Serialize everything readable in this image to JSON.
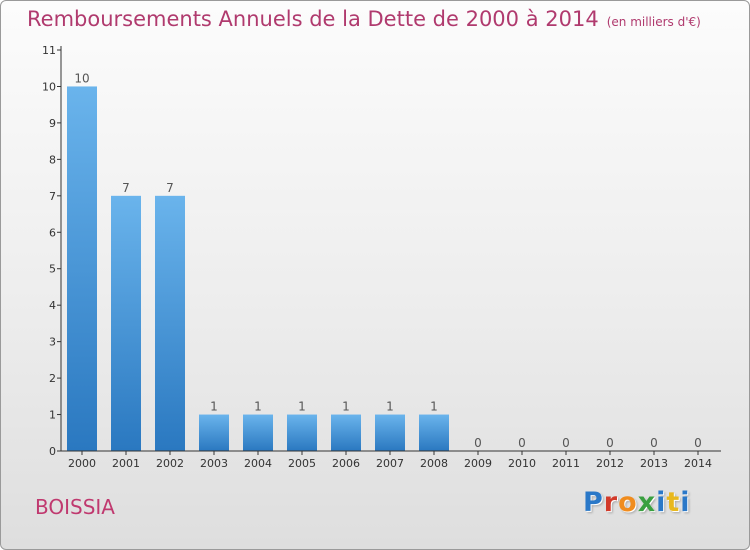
{
  "header": {
    "title": "Remboursements Annuels de la Dette de 2000 à 2014",
    "unit": "(en milliers d'€)"
  },
  "footer": {
    "commune": "BOISSIA",
    "logo_text": "Proxiti",
    "logo_colors": [
      "#2a78c8",
      "#d23a2a",
      "#f08c1e",
      "#3aa040",
      "#2a78c8",
      "#e8b81e",
      "#2a78c8"
    ]
  },
  "colors": {
    "bar_top": "#6ab4ec",
    "bar_bottom": "#2a78c0",
    "title": "#b03a6e",
    "axis": "#333333"
  },
  "chart_data": {
    "type": "bar",
    "title": "Remboursements Annuels de la Dette de 2000 à 2014",
    "xlabel": "",
    "ylabel": "",
    "categories": [
      "2000",
      "2001",
      "2002",
      "2003",
      "2004",
      "2005",
      "2006",
      "2007",
      "2008",
      "2009",
      "2010",
      "2011",
      "2012",
      "2013",
      "2014"
    ],
    "values": [
      10,
      7,
      7,
      1,
      1,
      1,
      1,
      1,
      1,
      0,
      0,
      0,
      0,
      0,
      0
    ],
    "data_labels": [
      "10",
      "7",
      "7",
      "1",
      "1",
      "1",
      "1",
      "1",
      "1",
      "0",
      "0",
      "0",
      "0",
      "0",
      "0"
    ],
    "yticks": [
      "0",
      "1",
      "2",
      "3",
      "4",
      "5",
      "6",
      "7",
      "8",
      "9",
      "10",
      "11"
    ],
    "ylim": [
      0,
      11
    ],
    "grid": false,
    "legend": "none"
  }
}
